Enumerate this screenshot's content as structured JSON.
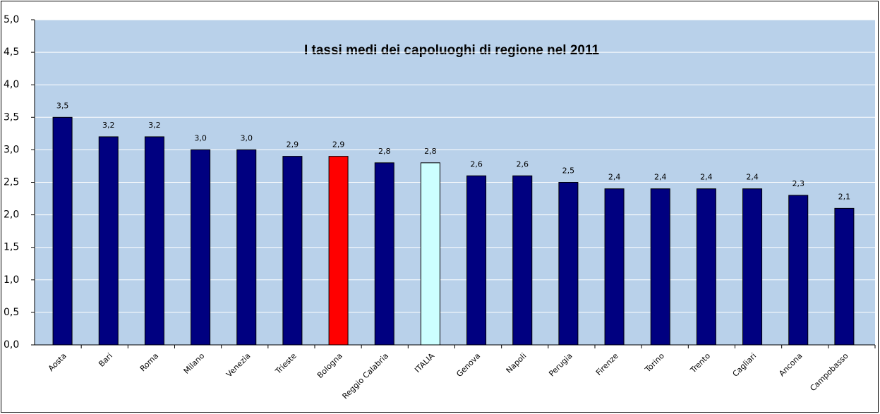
{
  "chart_data": {
    "type": "bar",
    "title": "I tassi medi dei capoluoghi di regione nel 2011",
    "categories": [
      "Aosta",
      "Bari",
      "Roma",
      "Milano",
      "Venezia",
      "Trieste",
      "Bologna",
      "Reggio Calabria",
      "ITALIA",
      "Genova",
      "Napoli",
      "Perugia",
      "Firenze",
      "Torino",
      "Trento",
      "Cagliari",
      "Ancona",
      "Campobasso"
    ],
    "values": [
      3.5,
      3.2,
      3.2,
      3.0,
      3.0,
      2.9,
      2.9,
      2.8,
      2.8,
      2.6,
      2.6,
      2.5,
      2.4,
      2.4,
      2.4,
      2.4,
      2.3,
      2.1
    ],
    "value_labels": [
      "3,5",
      "3,2",
      "3,2",
      "3,0",
      "3,0",
      "2,9",
      "2,9",
      "2,8",
      "2,8",
      "2,6",
      "2,6",
      "2,5",
      "2,4",
      "2,4",
      "2,4",
      "2,4",
      "2,3",
      "2,1"
    ],
    "colors": [
      "#000080",
      "#000080",
      "#000080",
      "#000080",
      "#000080",
      "#000080",
      "#ff0000",
      "#000080",
      "#ccffff",
      "#000080",
      "#000080",
      "#000080",
      "#000080",
      "#000080",
      "#000080",
      "#000080",
      "#000080",
      "#000080"
    ],
    "ylim": [
      0,
      5
    ],
    "yticks": [
      {
        "value": 0,
        "label": "0,0"
      },
      {
        "value": 0.5,
        "label": "0,5"
      },
      {
        "value": 1,
        "label": "1,0"
      },
      {
        "value": 1.5,
        "label": "1,5"
      },
      {
        "value": 2,
        "label": "2,0"
      },
      {
        "value": 2.5,
        "label": "2,5"
      },
      {
        "value": 3,
        "label": "3,0"
      },
      {
        "value": 3.5,
        "label": "3,5"
      },
      {
        "value": 4,
        "label": "4,0"
      },
      {
        "value": 4.5,
        "label": "4,5"
      },
      {
        "value": 5,
        "label": "5,0"
      }
    ],
    "grid": true
  }
}
